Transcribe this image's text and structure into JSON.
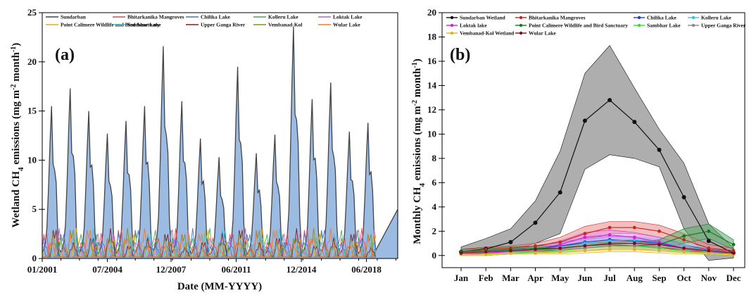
{
  "chart_data": [
    {
      "type": "area",
      "panel_label": "(a)",
      "xlabel": "Date (MM-YYYY)",
      "ylabel_parts": [
        "Wetland CH",
        "4",
        " emissions (mg m",
        "-2",
        " month",
        "-1",
        ")"
      ],
      "x_range": [
        2001.0,
        2020.1
      ],
      "ylim": [
        0,
        25
      ],
      "yticks": [
        0,
        5,
        10,
        15,
        20,
        25
      ],
      "xticks": [
        {
          "label": "01/2001",
          "x": 2001.0
        },
        {
          "label": "07/2004",
          "x": 2004.5
        },
        {
          "label": "12/2007",
          "x": 2007.92
        },
        {
          "label": "06/2011",
          "x": 2011.42
        },
        {
          "label": "12/2014",
          "x": 2014.92
        },
        {
          "label": "06/2018",
          "x": 2018.42
        }
      ],
      "sundarban_annual_peaks": [
        15.5,
        17.3,
        15.0,
        12.7,
        14.0,
        15.5,
        21.6,
        16.0,
        12.2,
        10.3,
        19.5,
        10.7,
        12.6,
        23.6,
        16.2,
        17.9,
        12.9,
        13.8
      ],
      "minor_peak_range": [
        1.0,
        3.4
      ],
      "legend": [
        "Sundarban",
        "Bhitarkanika Mangroves",
        "Chilika Lake",
        "Kolleru Lake",
        "Loktak Lake",
        "Point Calimere Wildlife and Bird Sanctuary",
        "Sambhar Lake",
        "Upper Ganga River",
        "Vembanad-Kol",
        "Wular Lake"
      ],
      "colors": [
        "#444444",
        "#e8474c",
        "#4a6fd8",
        "#3aae5a",
        "#c25bd6",
        "#d9b21a",
        "#38c1cf",
        "#7a1f2b",
        "#8a8a2a",
        "#f07a2e"
      ],
      "area_fill": "#9bbbe3"
    },
    {
      "type": "line",
      "panel_label": "(b)",
      "ylabel_parts": [
        "Monthly CH",
        "4",
        " emissions (mg m",
        "-2",
        " month",
        "-1",
        ")"
      ],
      "categories": [
        "Jan",
        "Feb",
        "Mar",
        "Apr",
        "May",
        "Jun",
        "Jul",
        "Aug",
        "Sep",
        "Oct",
        "Nov",
        "Dec"
      ],
      "ylim": [
        -1,
        20
      ],
      "yticks": [
        0,
        2,
        4,
        6,
        8,
        10,
        12,
        14,
        16,
        18,
        20
      ],
      "series": [
        {
          "name": "Sundarban Wetland",
          "color": "#111111",
          "band": "#a0a0a0",
          "values": [
            0.3,
            0.55,
            1.1,
            2.7,
            5.2,
            11.1,
            12.8,
            11.0,
            8.7,
            4.8,
            1.2,
            0.2
          ],
          "upper": [
            0.7,
            1.4,
            2.2,
            4.5,
            8.6,
            15.0,
            17.3,
            13.8,
            10.4,
            7.6,
            2.6,
            0.6
          ],
          "lower": [
            0.0,
            0.2,
            0.4,
            1.0,
            1.8,
            7.1,
            8.3,
            8.0,
            7.3,
            2.2,
            -0.4,
            -0.2
          ]
        },
        {
          "name": "Bhitarkanika Mangroves",
          "color": "#cc2222",
          "band": "#e88a8a",
          "values": [
            0.3,
            0.5,
            0.6,
            0.8,
            1.1,
            1.8,
            2.3,
            2.3,
            2.0,
            1.3,
            0.6,
            0.4
          ],
          "upper": [
            0.5,
            0.7,
            0.8,
            1.0,
            1.5,
            2.4,
            2.8,
            2.8,
            2.5,
            1.8,
            0.9,
            0.6
          ],
          "lower": [
            0.1,
            0.3,
            0.4,
            0.6,
            0.7,
            1.2,
            1.8,
            1.8,
            1.5,
            0.8,
            0.3,
            0.2
          ]
        },
        {
          "name": "Chilika Lake",
          "color": "#1f3fd1",
          "band": "#8c9fe8",
          "values": [
            0.2,
            0.3,
            0.4,
            0.5,
            0.8,
            1.1,
            1.3,
            1.2,
            1.0,
            0.6,
            0.3,
            0.2
          ],
          "upper": [
            0.4,
            0.5,
            0.6,
            0.8,
            1.1,
            1.4,
            1.6,
            1.5,
            1.3,
            0.9,
            0.5,
            0.4
          ],
          "lower": [
            0.0,
            0.1,
            0.2,
            0.3,
            0.5,
            0.8,
            1.0,
            0.9,
            0.7,
            0.3,
            0.1,
            0.0
          ]
        },
        {
          "name": "Kolleru Lake",
          "color": "#2cc7d6",
          "band": "#9de5ea",
          "values": [
            0.2,
            0.3,
            0.4,
            0.5,
            0.7,
            1.0,
            1.2,
            1.3,
            1.1,
            0.8,
            0.4,
            0.2
          ],
          "upper": [
            0.4,
            0.5,
            0.6,
            0.7,
            1.0,
            1.3,
            1.5,
            1.6,
            1.4,
            1.1,
            0.6,
            0.4
          ],
          "lower": [
            0.0,
            0.1,
            0.2,
            0.3,
            0.4,
            0.7,
            0.9,
            1.0,
            0.8,
            0.5,
            0.2,
            0.0
          ]
        },
        {
          "name": "Loktak lake",
          "color": "#d61fd6",
          "band": "#ee8fee",
          "values": [
            0.1,
            0.2,
            0.3,
            0.5,
            0.9,
            1.5,
            1.7,
            1.5,
            1.1,
            0.6,
            0.3,
            0.1
          ],
          "upper": [
            0.3,
            0.4,
            0.5,
            0.7,
            1.2,
            1.9,
            2.1,
            1.9,
            1.5,
            0.9,
            0.5,
            0.3
          ],
          "lower": [
            0.0,
            0.0,
            0.1,
            0.3,
            0.6,
            1.1,
            1.3,
            1.1,
            0.7,
            0.3,
            0.1,
            0.0
          ]
        },
        {
          "name": "Point Calimere Wildlife and Bird Sanctuary",
          "color": "#0f7a1f",
          "band": "#5bab68",
          "values": [
            0.3,
            0.4,
            0.5,
            0.6,
            0.6,
            0.8,
            0.9,
            0.8,
            0.9,
            1.6,
            2.0,
            0.9
          ],
          "upper": [
            0.5,
            0.6,
            0.7,
            0.8,
            0.8,
            1.0,
            1.1,
            1.0,
            1.3,
            2.2,
            2.6,
            1.3
          ],
          "lower": [
            0.1,
            0.2,
            0.3,
            0.4,
            0.4,
            0.6,
            0.7,
            0.6,
            0.5,
            1.0,
            1.4,
            0.5
          ]
        },
        {
          "name": "Sambhar Lake",
          "color": "#2fe02f",
          "band": "#a4eda4",
          "values": [
            0.1,
            0.1,
            0.2,
            0.3,
            0.4,
            0.6,
            0.8,
            0.8,
            0.6,
            0.4,
            0.2,
            0.1
          ],
          "upper": [
            0.2,
            0.2,
            0.3,
            0.4,
            0.6,
            0.8,
            1.0,
            1.0,
            0.8,
            0.6,
            0.3,
            0.2
          ],
          "lower": [
            0.0,
            0.0,
            0.1,
            0.2,
            0.2,
            0.4,
            0.6,
            0.6,
            0.4,
            0.2,
            0.1,
            0.0
          ]
        },
        {
          "name": "Upper Ganga River",
          "color": "#888888",
          "band": "#c8c8c8",
          "values": [
            0.2,
            0.3,
            0.3,
            0.4,
            0.5,
            0.6,
            0.8,
            0.8,
            0.7,
            0.5,
            0.3,
            0.2
          ],
          "upper": [
            0.3,
            0.4,
            0.4,
            0.5,
            0.7,
            0.8,
            1.0,
            1.0,
            0.9,
            0.7,
            0.4,
            0.3
          ],
          "lower": [
            0.1,
            0.2,
            0.2,
            0.3,
            0.3,
            0.4,
            0.6,
            0.6,
            0.5,
            0.3,
            0.2,
            0.1
          ]
        },
        {
          "name": "Vembanad-Kol Wetland",
          "color": "#e0b41e",
          "band": "#f2dd8c",
          "values": [
            0.1,
            0.1,
            0.2,
            0.2,
            0.3,
            0.4,
            0.5,
            0.5,
            0.4,
            0.3,
            0.2,
            0.1
          ],
          "upper": [
            0.2,
            0.2,
            0.3,
            0.3,
            0.5,
            0.6,
            0.7,
            0.7,
            0.6,
            0.5,
            0.3,
            0.2
          ],
          "lower": [
            0.0,
            0.0,
            0.1,
            0.1,
            0.1,
            0.2,
            0.3,
            0.3,
            0.2,
            0.1,
            0.1,
            0.0
          ]
        },
        {
          "name": "Wular Lake",
          "color": "#7a0f1f",
          "band": "#c48a93",
          "values": [
            0.2,
            0.3,
            0.4,
            0.5,
            0.6,
            0.8,
            1.0,
            1.0,
            0.9,
            0.6,
            0.4,
            0.2
          ],
          "upper": [
            0.3,
            0.4,
            0.5,
            0.6,
            0.8,
            1.0,
            1.2,
            1.2,
            1.1,
            0.8,
            0.5,
            0.3
          ],
          "lower": [
            0.1,
            0.2,
            0.3,
            0.4,
            0.4,
            0.6,
            0.8,
            0.8,
            0.7,
            0.4,
            0.3,
            0.1
          ]
        }
      ]
    }
  ]
}
